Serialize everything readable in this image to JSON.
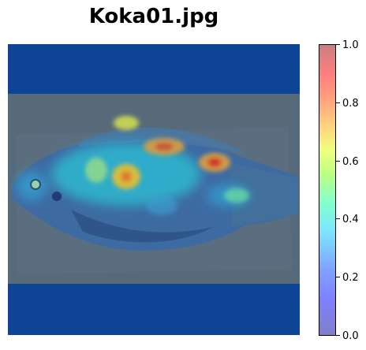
{
  "chart_data": {
    "type": "heatmap",
    "title": "Koka01.jpg",
    "colormap": "jet",
    "overlay_alpha": 0.5,
    "colorbar": {
      "range": [
        0.0,
        1.0
      ],
      "ticks": [
        "0.0",
        "0.2",
        "0.4",
        "0.6",
        "0.8",
        "1.0"
      ]
    },
    "hotspots": [
      {
        "value": 0.85,
        "region": "upper back near dorsal fin"
      },
      {
        "value": 0.75,
        "region": "top of body center"
      },
      {
        "value": 0.65,
        "region": "mid body"
      },
      {
        "value": 0.55,
        "region": "top edge above back"
      },
      {
        "value": 0.45,
        "region": "near tail base"
      },
      {
        "value": 0.35,
        "region": "head near eye"
      }
    ]
  },
  "colors": {
    "background_low": "#0e4597",
    "photo_gray": "#566a7a",
    "fish_blue": "#3a6aa8"
  }
}
